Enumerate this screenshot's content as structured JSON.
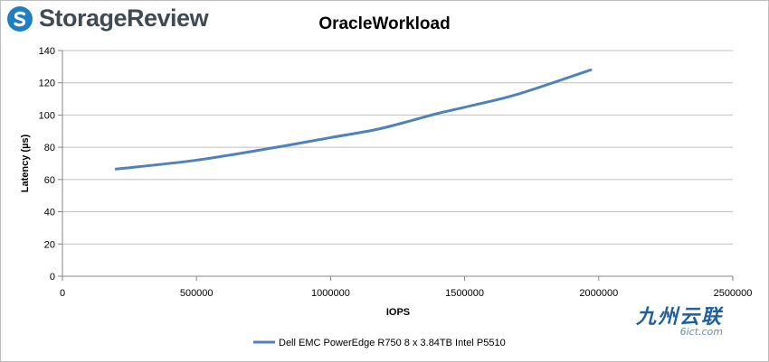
{
  "brand": {
    "name": "StorageReview",
    "logo_icon": "storagereview-s-logo"
  },
  "watermark": {
    "main": "九州云联",
    "sub": "6ict.com"
  },
  "colors": {
    "series": "#4f81bd",
    "grid": "#bfbfbf",
    "axis": "#868686",
    "text": "#000000"
  },
  "chart_data": {
    "type": "line",
    "title": "OracleWorkload",
    "xlabel": "IOPS",
    "ylabel": "Latency (µs)",
    "xlim": [
      0,
      2500000
    ],
    "ylim": [
      0,
      140
    ],
    "xticks": [
      0,
      500000,
      1000000,
      1500000,
      2000000,
      2500000
    ],
    "yticks": [
      0,
      20,
      40,
      60,
      80,
      100,
      120,
      140
    ],
    "grid": true,
    "legend": "bottom",
    "series": [
      {
        "name": "Dell EMC PowerEdge R750 8 x 3.84TB Intel P5510",
        "x": [
          200000,
          500000,
          780000,
          1000000,
          1170000,
          1300000,
          1400000,
          1530000,
          1700000,
          1970000
        ],
        "y": [
          66.5,
          72,
          79.5,
          86,
          91,
          96.5,
          101,
          106,
          113,
          128
        ]
      }
    ]
  }
}
